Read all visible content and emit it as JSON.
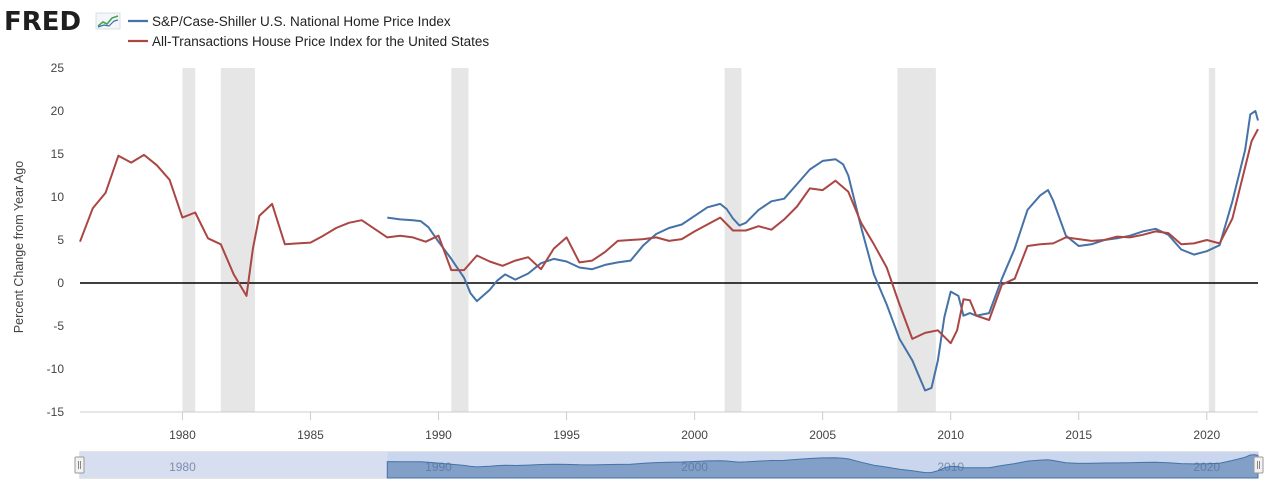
{
  "logo": {
    "text": "FRED"
  },
  "legend": [
    {
      "label": "S&P/Case-Shiller U.S. National Home Price Index",
      "color": "#4572A7"
    },
    {
      "label": "All-Transactions House Price Index for the United States",
      "color": "#AA4643"
    }
  ],
  "colors": {
    "recession_band": "#e6e6e6",
    "zero_line": "#000000",
    "navigator_fill": "#c9d6ee",
    "navigator_mask": "#d6def0",
    "navigator_series": "#4572A7"
  },
  "chart_data": {
    "type": "line",
    "title": "",
    "xlabel": "",
    "ylabel": "Percent Change from Year Ago",
    "xlim": [
      1976.0,
      2022.0
    ],
    "ylim": [
      -15,
      25
    ],
    "yticks": [
      25,
      20,
      15,
      10,
      5,
      0,
      -5,
      -10,
      -15
    ],
    "ytick_labels": [
      "25",
      "20",
      "15",
      "10",
      "5",
      "0",
      "-5",
      "-10",
      "-15"
    ],
    "xticks": [
      1980,
      1985,
      1990,
      1995,
      2000,
      2005,
      2010,
      2015,
      2020
    ],
    "xtick_labels": [
      "1980",
      "1985",
      "1990",
      "1995",
      "2000",
      "2005",
      "2010",
      "2015",
      "2020"
    ],
    "recessions": [
      [
        1980.0,
        1980.5
      ],
      [
        1981.5,
        1982.83
      ],
      [
        1990.5,
        1991.17
      ],
      [
        2001.17,
        2001.83
      ],
      [
        2007.92,
        2009.42
      ],
      [
        2020.08,
        2020.33
      ]
    ],
    "zero_line": 0,
    "series": [
      {
        "name": "S&P/Case-Shiller U.S. National Home Price Index",
        "x": [
          1988.0,
          1988.5,
          1989.0,
          1989.3,
          1989.6,
          1990.0,
          1990.5,
          1991.0,
          1991.25,
          1991.5,
          1992.0,
          1992.3,
          1992.6,
          1993.0,
          1993.5,
          1994.0,
          1994.5,
          1995.0,
          1995.5,
          1996.0,
          1996.5,
          1997.0,
          1997.5,
          1998.0,
          1998.5,
          1999.0,
          1999.5,
          2000.0,
          2000.5,
          2001.0,
          2001.25,
          2001.5,
          2001.75,
          2002.0,
          2002.5,
          2003.0,
          2003.5,
          2004.0,
          2004.5,
          2005.0,
          2005.5,
          2005.8,
          2006.0,
          2006.5,
          2007.0,
          2007.5,
          2008.0,
          2008.5,
          2009.0,
          2009.25,
          2009.5,
          2009.75,
          2010.0,
          2010.3,
          2010.5,
          2010.75,
          2011.0,
          2011.5,
          2012.0,
          2012.5,
          2013.0,
          2013.5,
          2013.8,
          2014.0,
          2014.5,
          2015.0,
          2015.5,
          2016.0,
          2016.5,
          2017.0,
          2017.5,
          2018.0,
          2018.5,
          2019.0,
          2019.5,
          2020.0,
          2020.5,
          2021.0,
          2021.5,
          2021.7,
          2021.9,
          2022.0
        ],
        "values": [
          7.6,
          7.4,
          7.3,
          7.2,
          6.5,
          4.8,
          2.8,
          0.6,
          -1.2,
          -2.1,
          -0.8,
          0.3,
          1.0,
          0.4,
          1.1,
          2.3,
          2.8,
          2.5,
          1.8,
          1.6,
          2.1,
          2.4,
          2.6,
          4.4,
          5.7,
          6.4,
          6.8,
          7.8,
          8.8,
          9.2,
          8.6,
          7.5,
          6.7,
          7.0,
          8.5,
          9.5,
          9.8,
          11.5,
          13.2,
          14.2,
          14.4,
          13.8,
          12.5,
          6.5,
          1.0,
          -2.5,
          -6.5,
          -9.0,
          -12.5,
          -12.2,
          -9.0,
          -4.0,
          -1.0,
          -1.5,
          -3.8,
          -3.5,
          -3.8,
          -3.5,
          0.5,
          4.0,
          8.5,
          10.2,
          10.8,
          9.6,
          5.5,
          4.3,
          4.5,
          5.0,
          5.2,
          5.5,
          6.0,
          6.3,
          5.6,
          3.9,
          3.3,
          3.7,
          4.4,
          9.5,
          15.5,
          19.6,
          20.0,
          18.9
        ]
      },
      {
        "name": "All-Transactions House Price Index for the United States",
        "x": [
          1976.0,
          1976.5,
          1977.0,
          1977.5,
          1978.0,
          1978.5,
          1979.0,
          1979.5,
          1980.0,
          1980.5,
          1981.0,
          1981.5,
          1982.0,
          1982.5,
          1982.75,
          1983.0,
          1983.5,
          1984.0,
          1984.5,
          1985.0,
          1985.5,
          1986.0,
          1986.5,
          1987.0,
          1987.5,
          1988.0,
          1988.5,
          1989.0,
          1989.5,
          1990.0,
          1990.5,
          1991.0,
          1991.5,
          1992.0,
          1992.5,
          1993.0,
          1993.5,
          1994.0,
          1994.5,
          1995.0,
          1995.5,
          1996.0,
          1996.5,
          1997.0,
          1997.5,
          1998.0,
          1998.5,
          1999.0,
          1999.5,
          2000.0,
          2000.5,
          2001.0,
          2001.5,
          2002.0,
          2002.5,
          2003.0,
          2003.5,
          2004.0,
          2004.5,
          2005.0,
          2005.5,
          2006.0,
          2006.5,
          2007.0,
          2007.5,
          2008.0,
          2008.5,
          2009.0,
          2009.5,
          2010.0,
          2010.25,
          2010.5,
          2010.75,
          2011.0,
          2011.5,
          2012.0,
          2012.5,
          2013.0,
          2013.5,
          2014.0,
          2014.5,
          2015.0,
          2015.5,
          2016.0,
          2016.5,
          2017.0,
          2017.5,
          2018.0,
          2018.5,
          2019.0,
          2019.5,
          2020.0,
          2020.5,
          2021.0,
          2021.5,
          2021.75,
          2022.0
        ],
        "values": [
          4.8,
          8.7,
          10.5,
          14.8,
          14.0,
          14.9,
          13.7,
          12.0,
          7.6,
          8.2,
          5.2,
          4.5,
          1.0,
          -1.5,
          4.0,
          7.8,
          9.2,
          4.5,
          4.6,
          4.7,
          5.5,
          6.4,
          7.0,
          7.3,
          6.3,
          5.3,
          5.5,
          5.3,
          4.8,
          5.5,
          1.5,
          1.5,
          3.2,
          2.5,
          2.0,
          2.6,
          3.0,
          1.6,
          4.0,
          5.3,
          2.4,
          2.6,
          3.6,
          4.9,
          5.0,
          5.1,
          5.3,
          4.9,
          5.1,
          6.0,
          6.8,
          7.6,
          6.1,
          6.1,
          6.6,
          6.2,
          7.4,
          8.9,
          11.0,
          10.8,
          11.9,
          10.6,
          7.0,
          4.5,
          1.8,
          -2.5,
          -6.5,
          -5.8,
          -5.5,
          -7.0,
          -5.5,
          -1.9,
          -2.0,
          -3.8,
          -4.3,
          -0.2,
          0.5,
          4.3,
          4.5,
          4.6,
          5.3,
          5.1,
          4.9,
          5.0,
          5.4,
          5.3,
          5.6,
          6.0,
          5.8,
          4.5,
          4.6,
          5.0,
          4.6,
          7.5,
          13.5,
          16.5,
          17.9
        ]
      }
    ],
    "navigator": {
      "xlim": [
        1976.0,
        2022.0
      ],
      "labels": [
        "1980",
        "1990",
        "2000",
        "2010",
        "2020"
      ],
      "label_years": [
        1980,
        1990,
        2000,
        2010,
        2020
      ]
    }
  }
}
